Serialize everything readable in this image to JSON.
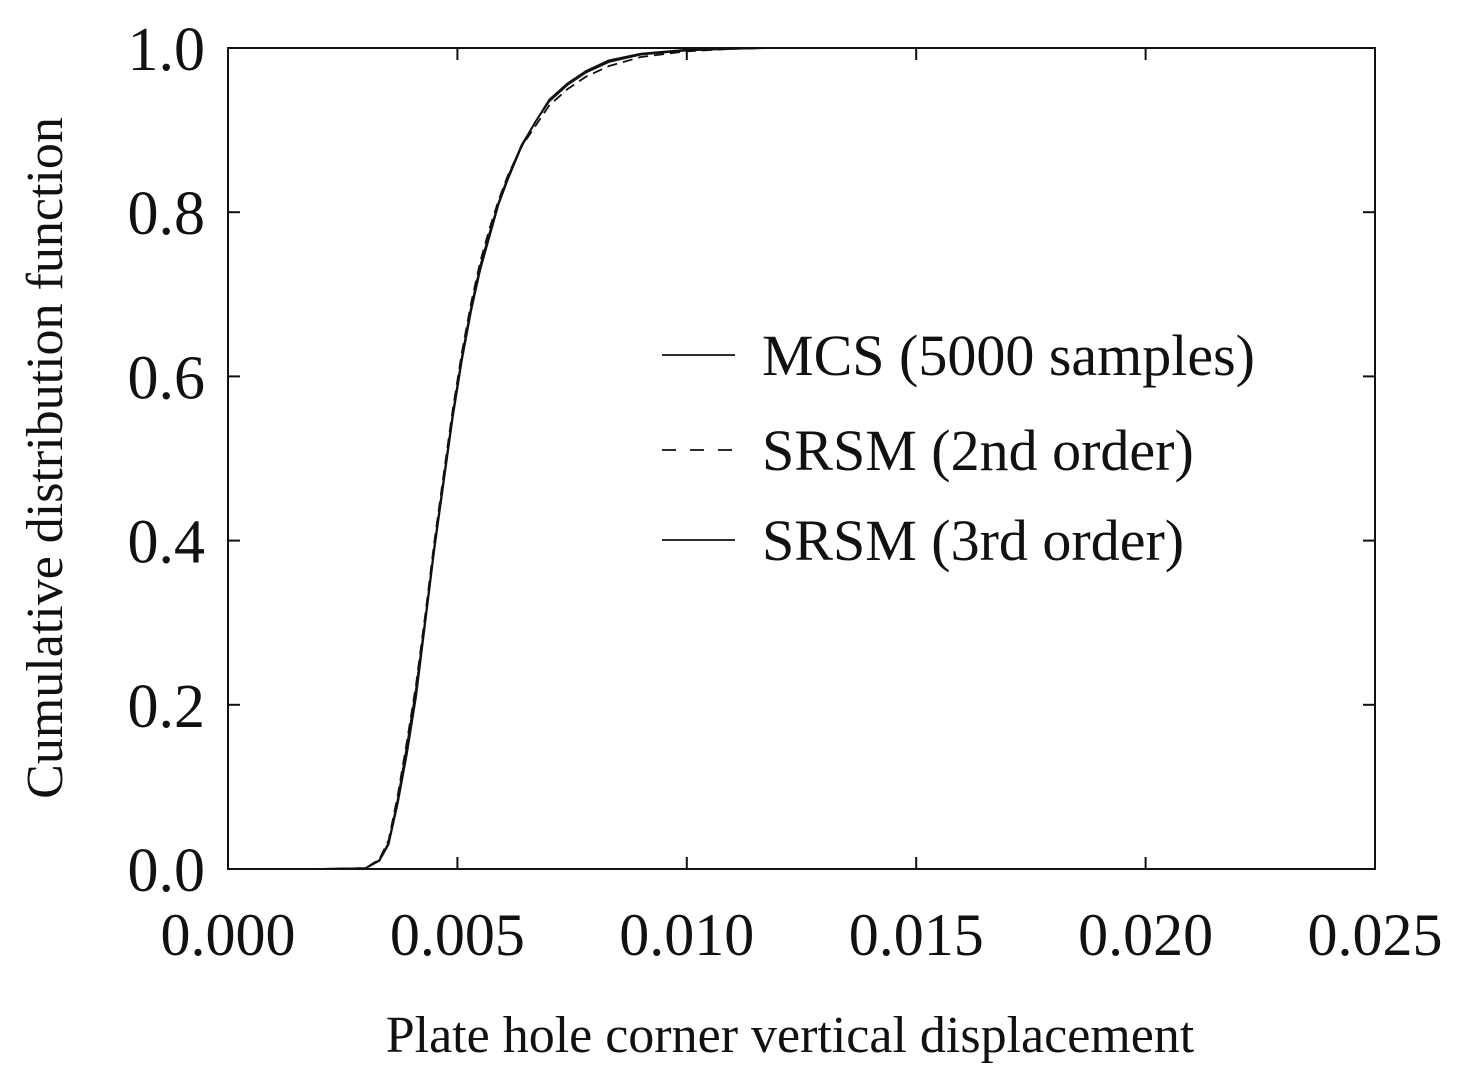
{
  "chart_data": {
    "type": "line",
    "title": "",
    "xlabel": "Plate hole corner vertical displacement",
    "ylabel": "Cumulative distribution function",
    "xlim": [
      0.0,
      0.025
    ],
    "ylim": [
      0.0,
      1.0
    ],
    "x_ticks": [
      "0.000",
      "0.005",
      "0.010",
      "0.015",
      "0.020",
      "0.025"
    ],
    "y_ticks": [
      "0.0",
      "0.2",
      "0.4",
      "0.6",
      "0.8",
      "1.0"
    ],
    "grid": false,
    "legend_position": "center-right",
    "series": [
      {
        "name": "MCS (5000 samples)",
        "style": "solid",
        "x": [
          0.0019,
          0.003,
          0.0033,
          0.0035,
          0.0037,
          0.0039,
          0.0041,
          0.0043,
          0.0045,
          0.0047,
          0.0049,
          0.0051,
          0.0053,
          0.0055,
          0.0057,
          0.0059,
          0.0061,
          0.0064,
          0.0067,
          0.007,
          0.0074,
          0.0078,
          0.0083,
          0.009,
          0.01,
          0.011,
          0.0118
        ],
        "y": [
          0.0,
          0.001,
          0.01,
          0.03,
          0.08,
          0.14,
          0.21,
          0.3,
          0.39,
          0.47,
          0.55,
          0.62,
          0.68,
          0.73,
          0.77,
          0.81,
          0.84,
          0.88,
          0.91,
          0.935,
          0.955,
          0.97,
          0.983,
          0.992,
          0.997,
          0.999,
          1.0
        ]
      },
      {
        "name": "SRSM (2nd order)",
        "style": "dashed",
        "x": [
          0.002,
          0.003,
          0.0033,
          0.0035,
          0.0037,
          0.0039,
          0.0041,
          0.0043,
          0.0045,
          0.0047,
          0.0049,
          0.0051,
          0.0053,
          0.0055,
          0.0057,
          0.0059,
          0.0061,
          0.0064,
          0.0067,
          0.007,
          0.0074,
          0.0078,
          0.0083,
          0.009,
          0.01,
          0.011,
          0.0117
        ],
        "y": [
          0.0,
          0.001,
          0.012,
          0.035,
          0.09,
          0.155,
          0.225,
          0.31,
          0.4,
          0.48,
          0.56,
          0.63,
          0.69,
          0.74,
          0.78,
          0.815,
          0.845,
          0.88,
          0.905,
          0.93,
          0.95,
          0.965,
          0.978,
          0.989,
          0.996,
          0.999,
          1.0
        ]
      },
      {
        "name": "SRSM (3rd order)",
        "style": "solid",
        "x": [
          0.002,
          0.003,
          0.0033,
          0.0035,
          0.0037,
          0.0039,
          0.0041,
          0.0043,
          0.0045,
          0.0047,
          0.0049,
          0.0051,
          0.0053,
          0.0055,
          0.0057,
          0.0059,
          0.0061,
          0.0064,
          0.0067,
          0.007,
          0.0074,
          0.0078,
          0.0083,
          0.009,
          0.01,
          0.011,
          0.0117
        ],
        "y": [
          0.0,
          0.001,
          0.011,
          0.032,
          0.085,
          0.15,
          0.22,
          0.305,
          0.395,
          0.475,
          0.555,
          0.625,
          0.685,
          0.735,
          0.775,
          0.812,
          0.843,
          0.882,
          0.91,
          0.937,
          0.957,
          0.972,
          0.985,
          0.993,
          0.998,
          0.999,
          1.0
        ]
      }
    ]
  }
}
